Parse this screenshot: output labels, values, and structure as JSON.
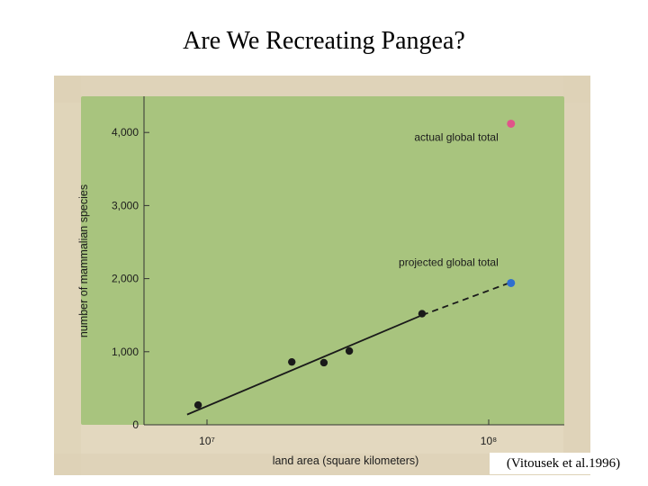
{
  "slide": {
    "title": "Are We Recreating Pangea?",
    "citation": "(Vitousek et al.1996)"
  },
  "colors": {
    "plot_background": "#a8c47e",
    "photo_background": "#e6dcc4",
    "points": "#1a1a1a",
    "actual_marker": "#e0548a",
    "projected_marker": "#2f6fcf",
    "fit_line": "#1a1a1a"
  },
  "chart_data": {
    "type": "scatter",
    "xlabel": "land area (square kilometers)",
    "ylabel": "number of mammalian species",
    "x_scale": "log",
    "xlim": [
      8000000,
      150000000
    ],
    "ylim": [
      0,
      4400
    ],
    "y_ticks": [
      0,
      1000,
      2000,
      3000,
      4000
    ],
    "y_tick_labels": [
      "0",
      "1,000",
      "2,000",
      "3,000",
      "4,000"
    ],
    "x_ticks": [
      10000000,
      100000000
    ],
    "x_tick_labels": [
      "10⁷",
      "10⁸"
    ],
    "grid": false,
    "points": [
      {
        "x": 9300000,
        "y": 270
      },
      {
        "x": 20000000,
        "y": 860
      },
      {
        "x": 26000000,
        "y": 850
      },
      {
        "x": 32000000,
        "y": 1010
      },
      {
        "x": 58000000,
        "y": 1520
      }
    ],
    "fit_line": {
      "from": [
        8500000,
        140
      ],
      "solid_to": [
        58000000,
        1500
      ],
      "dashed_to": [
        120000000,
        1950
      ]
    },
    "annotations": [
      {
        "label": "actual global total",
        "x": 120000000,
        "y": 4120
      },
      {
        "label": "projected global total",
        "x": 120000000,
        "y": 1940
      }
    ]
  }
}
